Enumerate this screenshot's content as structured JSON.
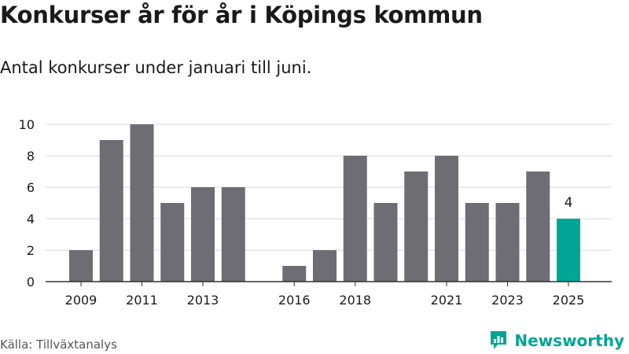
{
  "header": {
    "title": "Konkurser år för år i Köpings kommun",
    "subtitle": "Antal konkurser under januari till juni."
  },
  "footer": {
    "source": "Källa: Tillväxtanalys",
    "brand": "Newsworthy"
  },
  "colors": {
    "bar": "#6e6d73",
    "highlight": "#00a596",
    "grid": "#d9d9d9",
    "axis": "#333333",
    "text": "#1a1a1a",
    "brand": "#00a596"
  },
  "icons": {
    "brand_logo": "newsworthy-logo-icon"
  },
  "chart_data": {
    "type": "bar",
    "title": "Konkurser år för år i Köpings kommun",
    "subtitle": "Antal konkurser under januari till juni.",
    "xlabel": "",
    "ylabel": "",
    "categories": [
      2009,
      2010,
      2011,
      2012,
      2013,
      2014,
      2015,
      2016,
      2017,
      2018,
      2019,
      2020,
      2021,
      2022,
      2023,
      2024,
      2025
    ],
    "values": [
      2,
      9,
      10,
      5,
      6,
      6,
      0,
      1,
      2,
      8,
      5,
      7,
      8,
      5,
      5,
      7,
      4
    ],
    "ylim": [
      0,
      10
    ],
    "yticks": [
      0,
      2,
      4,
      6,
      8,
      10
    ],
    "xtick_labels": [
      2009,
      2011,
      2013,
      2016,
      2018,
      2021,
      2023,
      2025
    ],
    "highlight_category": 2025,
    "data_labels": [
      {
        "category": 2025,
        "text": "4"
      }
    ],
    "grid": true,
    "legend": "none"
  }
}
